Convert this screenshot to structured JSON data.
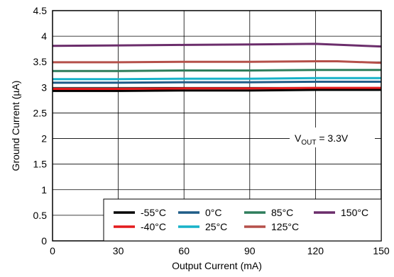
{
  "chart_data": {
    "type": "line",
    "xlabel": "Output Current (mA)",
    "ylabel": "Ground Current (µA)",
    "xlim": [
      0,
      150
    ],
    "ylim": [
      0,
      4.5
    ],
    "x_ticks": [
      "0",
      "30",
      "60",
      "90",
      "120",
      "150"
    ],
    "y_ticks": [
      "0",
      "0.5",
      "1",
      "1.5",
      "2",
      "2.5",
      "3",
      "3.5",
      "4",
      "4.5"
    ],
    "grid": true,
    "legend_position": "bottom-right",
    "annotation": {
      "prefix": "V",
      "subscript": "OUT",
      "suffix": " = 3.3V"
    },
    "series": [
      {
        "name": "-55°C",
        "color": "#000000",
        "x": [
          0,
          30,
          60,
          90,
          120,
          150
        ],
        "y": [
          2.93,
          2.93,
          2.94,
          2.94,
          2.95,
          2.95
        ]
      },
      {
        "name": "-40°C",
        "color": "#e31a1c",
        "x": [
          0,
          30,
          60,
          90,
          120,
          150
        ],
        "y": [
          2.97,
          2.97,
          2.98,
          2.98,
          2.99,
          2.99
        ]
      },
      {
        "name": "0°C",
        "color": "#1f5c87",
        "x": [
          0,
          30,
          60,
          90,
          120,
          150
        ],
        "y": [
          3.09,
          3.09,
          3.1,
          3.1,
          3.11,
          3.11
        ]
      },
      {
        "name": "25°C",
        "color": "#17b2c8",
        "x": [
          0,
          30,
          60,
          90,
          120,
          150
        ],
        "y": [
          3.16,
          3.16,
          3.17,
          3.17,
          3.18,
          3.18
        ]
      },
      {
        "name": "85°C",
        "color": "#2e7d5b",
        "x": [
          0,
          30,
          60,
          90,
          120,
          150
        ],
        "y": [
          3.32,
          3.32,
          3.33,
          3.33,
          3.34,
          3.34
        ]
      },
      {
        "name": "125°C",
        "color": "#b5504a",
        "x": [
          0,
          30,
          60,
          90,
          120,
          130,
          150
        ],
        "y": [
          3.49,
          3.49,
          3.5,
          3.5,
          3.51,
          3.51,
          3.48
        ]
      },
      {
        "name": "150°C",
        "color": "#6b2d6b",
        "x": [
          0,
          30,
          60,
          90,
          120,
          150
        ],
        "y": [
          3.81,
          3.82,
          3.83,
          3.84,
          3.85,
          3.8
        ]
      }
    ]
  }
}
